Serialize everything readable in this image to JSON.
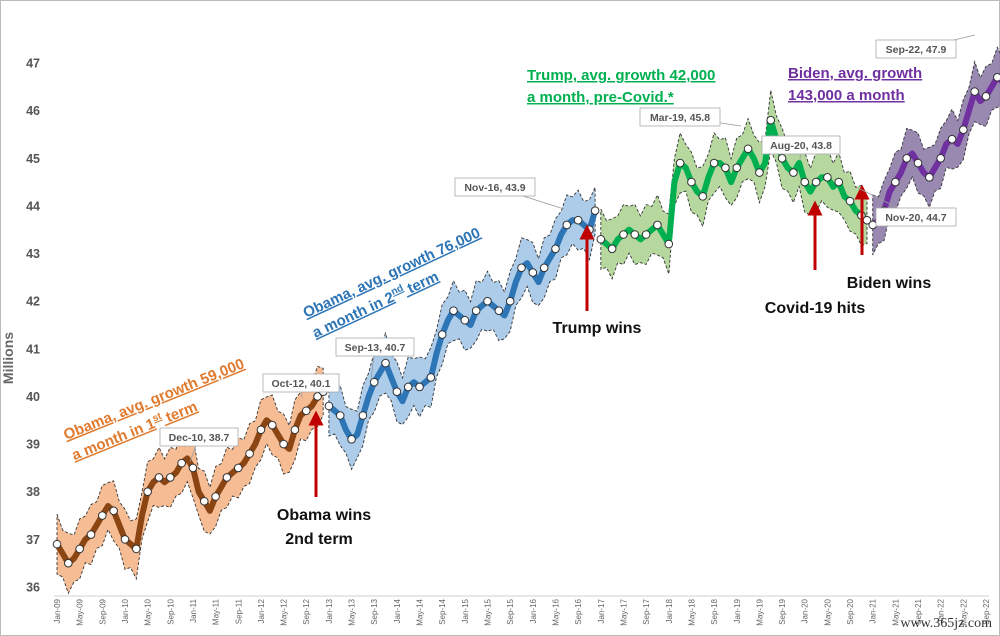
{
  "chart_data": {
    "type": "line",
    "ylabel": "Millions",
    "ylim": [
      36,
      48
    ],
    "yticks": [
      36,
      37,
      38,
      39,
      40,
      41,
      42,
      43,
      44,
      45,
      46,
      47
    ],
    "x_start": "Jan-09",
    "x_end": "Sep-22",
    "xtick_labels": [
      "Jan-09",
      "May-09",
      "Sep-09",
      "Jan-10",
      "May-10",
      "Sep-10",
      "Jan-11",
      "May-11",
      "Sep-11",
      "Jan-12",
      "May-12",
      "Sep-12",
      "Jan-13",
      "May-13",
      "Sep-13",
      "Jan-14",
      "May-14",
      "Sep-14",
      "Jan-15",
      "May-15",
      "Sep-15",
      "Jan-16",
      "May-16",
      "Sep-16",
      "Jan-17",
      "May-17",
      "Sep-17",
      "Jan-18",
      "May-18",
      "Sep-18",
      "Jan-19",
      "May-19",
      "Sep-19",
      "Jan-20",
      "May-20",
      "Sep-20",
      "Jan-21",
      "May-21",
      "Sep-21",
      "Jan-22",
      "May-22",
      "Sep-22"
    ],
    "series": [
      {
        "color": "#8B4513",
        "band_color": "#F4B183",
        "values": [
          36.9,
          36.7,
          36.5,
          36.6,
          36.8,
          37.0,
          37.1,
          37.3,
          37.5,
          37.7,
          37.6,
          37.3,
          37.0,
          36.9,
          36.8,
          37.5,
          38.0,
          38.2,
          38.3,
          38.2,
          38.3,
          38.4,
          38.6,
          38.7,
          38.5,
          38.0,
          37.8,
          37.6,
          37.9,
          38.1,
          38.3,
          38.4,
          38.5,
          38.6,
          38.8,
          39.0,
          39.3,
          39.5,
          39.4,
          39.2,
          39.0,
          38.9,
          39.3,
          39.6,
          39.7,
          39.8,
          40.0,
          40.1
        ]
      },
      {
        "color": "#2E75B6",
        "band_color": "#9DC3E6",
        "values": [
          39.8,
          39.7,
          39.6,
          39.3,
          39.1,
          39.2,
          39.6,
          40.0,
          40.3,
          40.5,
          40.7,
          40.4,
          40.1,
          39.9,
          40.2,
          40.3,
          40.2,
          40.3,
          40.4,
          40.9,
          41.3,
          41.6,
          41.8,
          41.7,
          41.6,
          41.5,
          41.8,
          41.9,
          42.0,
          41.9,
          41.8,
          41.7,
          42.0,
          42.4,
          42.7,
          42.8,
          42.6,
          42.4,
          42.7,
          42.9,
          43.1,
          43.4,
          43.6,
          43.7,
          43.7,
          43.6,
          43.5,
          43.9
        ]
      },
      {
        "color": "#00B050",
        "band_color": "#A9D18E",
        "values": [
          43.3,
          43.2,
          43.1,
          43.3,
          43.4,
          43.5,
          43.4,
          43.3,
          43.4,
          43.5,
          43.6,
          43.4,
          43.2,
          44.5,
          44.9,
          44.8,
          44.5,
          44.3,
          44.2,
          44.6,
          44.9,
          44.9,
          44.8,
          44.5,
          44.8,
          45.0,
          45.2,
          45.0,
          44.7,
          44.9,
          45.8,
          45.4,
          45.0,
          44.8,
          44.7,
          44.9,
          44.5,
          44.3,
          44.5,
          44.6,
          44.6,
          44.4,
          44.5,
          44.2,
          44.1,
          43.9,
          43.8,
          43.7
        ]
      },
      {
        "color": "#7030A0",
        "band_color": "#8E7CA8",
        "values": [
          43.6,
          43.7,
          43.9,
          44.3,
          44.5,
          44.7,
          45.0,
          45.1,
          44.9,
          44.7,
          44.6,
          44.8,
          45.0,
          45.3,
          45.4,
          45.3,
          45.6,
          46.0,
          46.4,
          46.2,
          46.3,
          46.5,
          46.7,
          46.6,
          46.8,
          47.0,
          47.2,
          47.5,
          47.9
        ]
      }
    ],
    "callouts": [
      {
        "label": "Dec-10,  38.7"
      },
      {
        "label": "Oct-12,  40.1"
      },
      {
        "label": "Sep-13,  40.7"
      },
      {
        "label": "Nov-16,  43.9"
      },
      {
        "label": "Mar-19,  45.8"
      },
      {
        "label": "Aug-20,  43.8"
      },
      {
        "label": "Nov-20,  44.7"
      },
      {
        "label": "Sep-22,  47.9"
      }
    ],
    "events": [
      {
        "label_line1": "Obama wins",
        "label_line2": "2nd term",
        "date": "Nov-12"
      },
      {
        "label_line1": "Trump wins",
        "date": "Nov-16"
      },
      {
        "label_line1": "Covid-19 hits",
        "date": "Mar-20"
      },
      {
        "label_line1": "Biden wins",
        "date": "Nov-20"
      }
    ],
    "period_labels": [
      {
        "line1": "Obama, avg. growth 59,000",
        "line2_pre": "a month in 1",
        "line2_sup": "st",
        "line2_post": " term",
        "color": "#E07A2E"
      },
      {
        "line1": "Obama, avg. growth 76,000",
        "line2_pre": "a month in 2",
        "line2_sup": "nd",
        "line2_post": " term",
        "color": "#2E75B6"
      },
      {
        "line1": "Trump, avg. growth 42,000",
        "line2": "a month, pre-Covid.*",
        "color": "#00B050"
      },
      {
        "line1": "Biden, avg. growth",
        "line2": "143,000 a month",
        "color": "#7030A0"
      }
    ],
    "grid": false,
    "legend": "none"
  },
  "watermark": "www.365jz.com"
}
